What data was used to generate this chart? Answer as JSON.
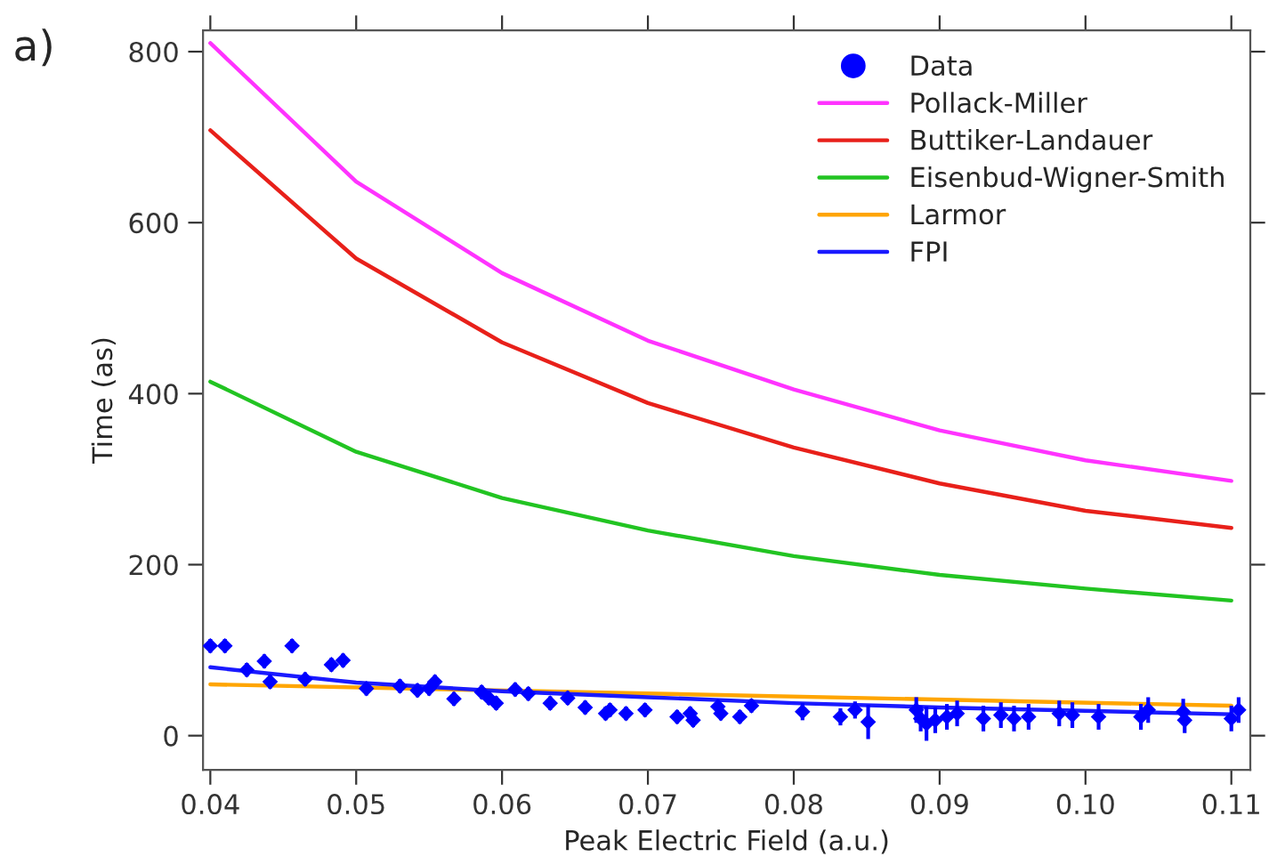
{
  "chart_data": {
    "type": "line",
    "xlabel": "Peak Electric Field (a.u.)",
    "ylabel": "Time (as)",
    "annotations": [
      "a)"
    ],
    "xlim": [
      0.0395,
      0.1113
    ],
    "ylim": [
      -40,
      825
    ],
    "xticks": [
      0.04,
      0.05,
      0.06,
      0.07,
      0.08,
      0.09,
      {
        "value": 0.1,
        "label": "0.10"
      },
      0.11
    ],
    "yticks": [
      0,
      200,
      400,
      600,
      800
    ],
    "grid": false,
    "legend": "top right",
    "series": [
      {
        "name": "Data",
        "type": "scatter",
        "color": "#0000ff",
        "marker": "diamond",
        "x": [
          0.04,
          0.041,
          0.0425,
          0.0437,
          0.0441,
          0.0456,
          0.0465,
          0.0483,
          0.0491,
          0.0507,
          0.053,
          0.0542,
          0.055,
          0.0554,
          0.0567,
          0.0586,
          0.0591,
          0.0596,
          0.0609,
          0.0618,
          0.0633,
          0.0645,
          0.0657,
          0.0671,
          0.0674,
          0.0685,
          0.0698,
          0.072,
          0.0729,
          0.0731,
          0.0748,
          0.075,
          0.0763,
          0.0771,
          0.0806,
          0.0832,
          0.0842,
          0.0851,
          0.0884,
          0.0887,
          0.0891,
          0.0897,
          0.0905,
          0.0912,
          0.093,
          0.0942,
          0.0951,
          0.0961,
          0.0982,
          0.0991,
          0.1009,
          0.1038,
          0.1043,
          0.1067,
          0.1068,
          0.11,
          0.1105
        ],
        "values": [
          105,
          105,
          77,
          87,
          63,
          105,
          66,
          83,
          88,
          55,
          58,
          53,
          55,
          63,
          43,
          51,
          44,
          38,
          54,
          49,
          38,
          44,
          33,
          26,
          30,
          26,
          30,
          22,
          26,
          18,
          34,
          26,
          22,
          35,
          28,
          22,
          30,
          16,
          30,
          20,
          14,
          18,
          22,
          26,
          20,
          24,
          20,
          22,
          26,
          24,
          22,
          22,
          30,
          28,
          18,
          20,
          30
        ],
        "errors": [
          8,
          8,
          8,
          8,
          8,
          8,
          8,
          8,
          8,
          8,
          8,
          8,
          8,
          8,
          8,
          8,
          8,
          8,
          8,
          8,
          8,
          8,
          8,
          8,
          8,
          8,
          8,
          8,
          8,
          8,
          8,
          8,
          8,
          8,
          10,
          10,
          10,
          20,
          15,
          15,
          20,
          15,
          15,
          15,
          15,
          15,
          15,
          15,
          15,
          15,
          15,
          15,
          15,
          15,
          15,
          15,
          15
        ]
      },
      {
        "name": "Pollack-Miller",
        "color": "#ff33ff",
        "x": [
          0.04,
          0.05,
          0.06,
          0.07,
          0.08,
          0.09,
          0.1,
          0.11
        ],
        "values": [
          810,
          648,
          541,
          462,
          405,
          357,
          322,
          298
        ]
      },
      {
        "name": "Buttiker-Landauer",
        "color": "#e8201a",
        "x": [
          0.04,
          0.05,
          0.06,
          0.07,
          0.08,
          0.09,
          0.1,
          0.11
        ],
        "values": [
          708,
          558,
          460,
          389,
          337,
          295,
          263,
          243
        ]
      },
      {
        "name": "Eisenbud-Wigner-Smith",
        "color": "#22c422",
        "x": [
          0.04,
          0.05,
          0.06,
          0.07,
          0.08,
          0.09,
          0.1,
          0.11
        ],
        "values": [
          414,
          332,
          278,
          240,
          210,
          188,
          172,
          158
        ]
      },
      {
        "name": "Larmor",
        "color": "#ffa500",
        "x": [
          0.04,
          0.11
        ],
        "values": [
          60,
          35
        ]
      },
      {
        "name": "FPI",
        "color": "#1a1aff",
        "x": [
          0.04,
          0.05,
          0.06,
          0.07,
          0.08,
          0.09,
          0.1,
          0.11
        ],
        "values": [
          80,
          62,
          52,
          45,
          38,
          33,
          29,
          25
        ]
      }
    ]
  }
}
